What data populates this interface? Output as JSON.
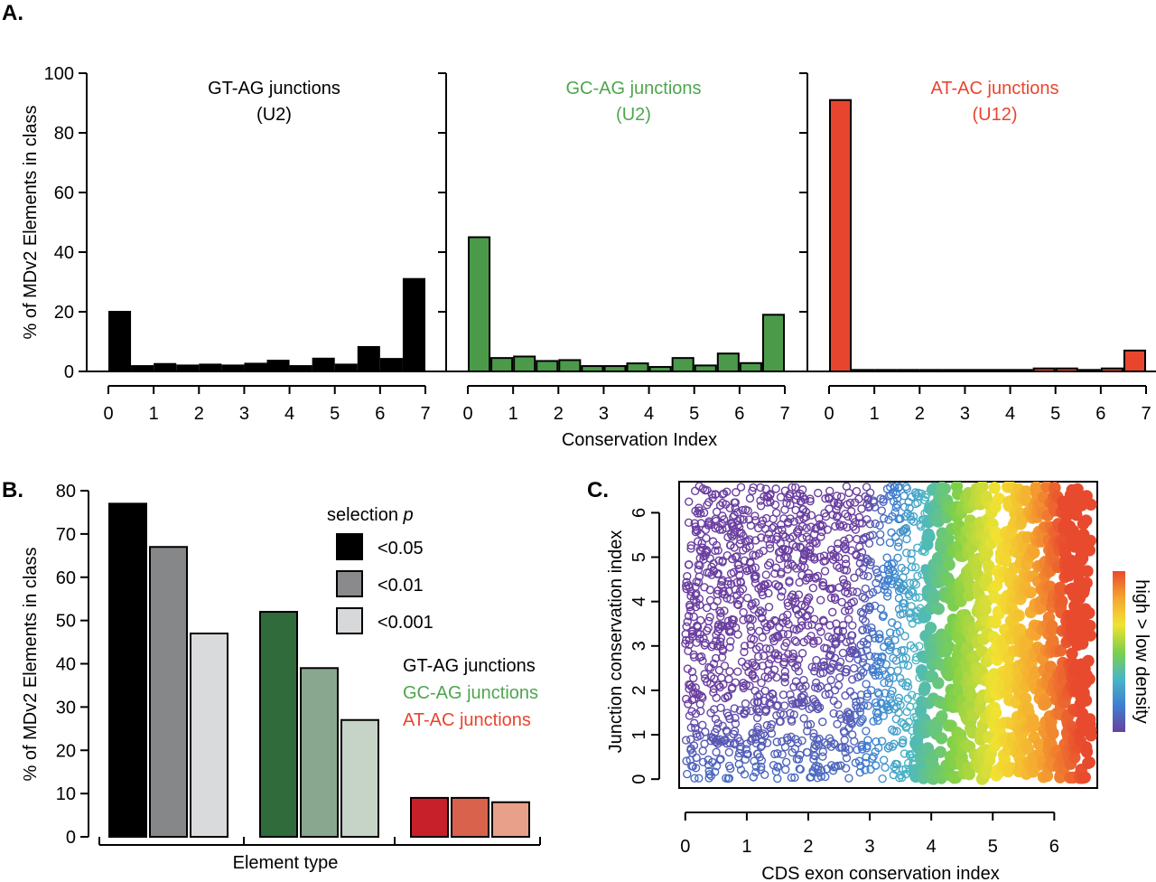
{
  "chart_data": [
    {
      "panel_label": "A.",
      "type": "bar",
      "ylabel": "% of MDv2 Elements in class",
      "xlabel": "Conservation Index",
      "ylim": [
        0,
        100
      ],
      "yticks": [
        "0",
        "20",
        "40",
        "60",
        "80",
        "100"
      ],
      "xlim": [
        0,
        7
      ],
      "xticks": [
        "0",
        "1",
        "2",
        "3",
        "4",
        "5",
        "6",
        "7"
      ],
      "bin_width": 0.5,
      "subplots": [
        {
          "title": "GT-AG junctions",
          "subtitle": "(U2)",
          "color": "#000000",
          "title_color": "#000000",
          "x": [
            0,
            0.5,
            1,
            1.5,
            2,
            2.5,
            3,
            3.5,
            4,
            4.5,
            5,
            5.5,
            6,
            6.5
          ],
          "values": [
            20,
            1.8,
            2.5,
            2,
            2.3,
            2,
            2.6,
            3.6,
            1.8,
            4.3,
            2.3,
            8.2,
            4.2,
            31
          ]
        },
        {
          "title": "GC-AG junctions",
          "subtitle": "(U2)",
          "color": "#4a9a4a",
          "title_color": "#4ea64e",
          "x": [
            0,
            0.5,
            1,
            1.5,
            2,
            2.5,
            3,
            3.5,
            4,
            4.5,
            5,
            5.5,
            6,
            6.5
          ],
          "values": [
            45,
            4.5,
            5,
            3.5,
            3.8,
            1.8,
            1.8,
            2.7,
            1.5,
            4.5,
            2,
            6,
            2.8,
            19
          ]
        },
        {
          "title": "AT-AC junctions",
          "subtitle": "(U12)",
          "color": "#e8452e",
          "title_color": "#e8452e",
          "x": [
            0,
            0.5,
            1,
            1.5,
            2,
            2.5,
            3,
            3.5,
            4,
            4.5,
            5,
            5.5,
            6,
            6.5
          ],
          "values": [
            91,
            0.5,
            0.5,
            0.5,
            0.5,
            0.5,
            0.5,
            0.5,
            0.5,
            1,
            1,
            0.5,
            1,
            7
          ]
        }
      ]
    },
    {
      "panel_label": "B.",
      "type": "bar",
      "ylabel": "% of MDv2 Elements in class",
      "xlabel": "Element type",
      "ylim": [
        0,
        80
      ],
      "yticks": [
        "0",
        "10",
        "20",
        "30",
        "40",
        "50",
        "60",
        "70",
        "80"
      ],
      "legend_title": "selection",
      "legend_title_italic": "p",
      "series": [
        {
          "name": "<0.05",
          "legend_color": "#000000"
        },
        {
          "name": "<0.01",
          "legend_color": "#8a8a8c"
        },
        {
          "name": "<0.001",
          "legend_color": "#d7d8da"
        }
      ],
      "groups": [
        {
          "name": "GT-AG junctions",
          "label_color": "#000000",
          "values": [
            77,
            67,
            47
          ],
          "colors": [
            "#000000",
            "#858789",
            "#d8dadc"
          ]
        },
        {
          "name": "GC-AG junctions",
          "label_color": "#4ea64e",
          "values": [
            52,
            39,
            27
          ],
          "colors": [
            "#2f6b3b",
            "#89a68e",
            "#c6d4c8"
          ]
        },
        {
          "name": "AT-AC junctions",
          "label_color": "#e8452e",
          "values": [
            9,
            9,
            8
          ],
          "colors": [
            "#c8202b",
            "#d9624d",
            "#e8a08a"
          ]
        }
      ]
    },
    {
      "panel_label": "C.",
      "type": "scatter",
      "xlabel": "CDS exon conservation index",
      "ylabel": "Junction conservation index",
      "xlim": [
        -0.1,
        6.7
      ],
      "ylim": [
        -0.2,
        6.7
      ],
      "xticks": [
        "0",
        "1",
        "2",
        "3",
        "4",
        "5",
        "6"
      ],
      "yticks": [
        "0",
        "1",
        "2",
        "3",
        "4",
        "5",
        "6"
      ],
      "colorbar_label": "high > low density",
      "colorbar_colors": [
        "#6a3fa0",
        "#3f7fd0",
        "#4ab7c5",
        "#7ed04a",
        "#f2e232",
        "#f5a530",
        "#e84a2e"
      ]
    }
  ]
}
